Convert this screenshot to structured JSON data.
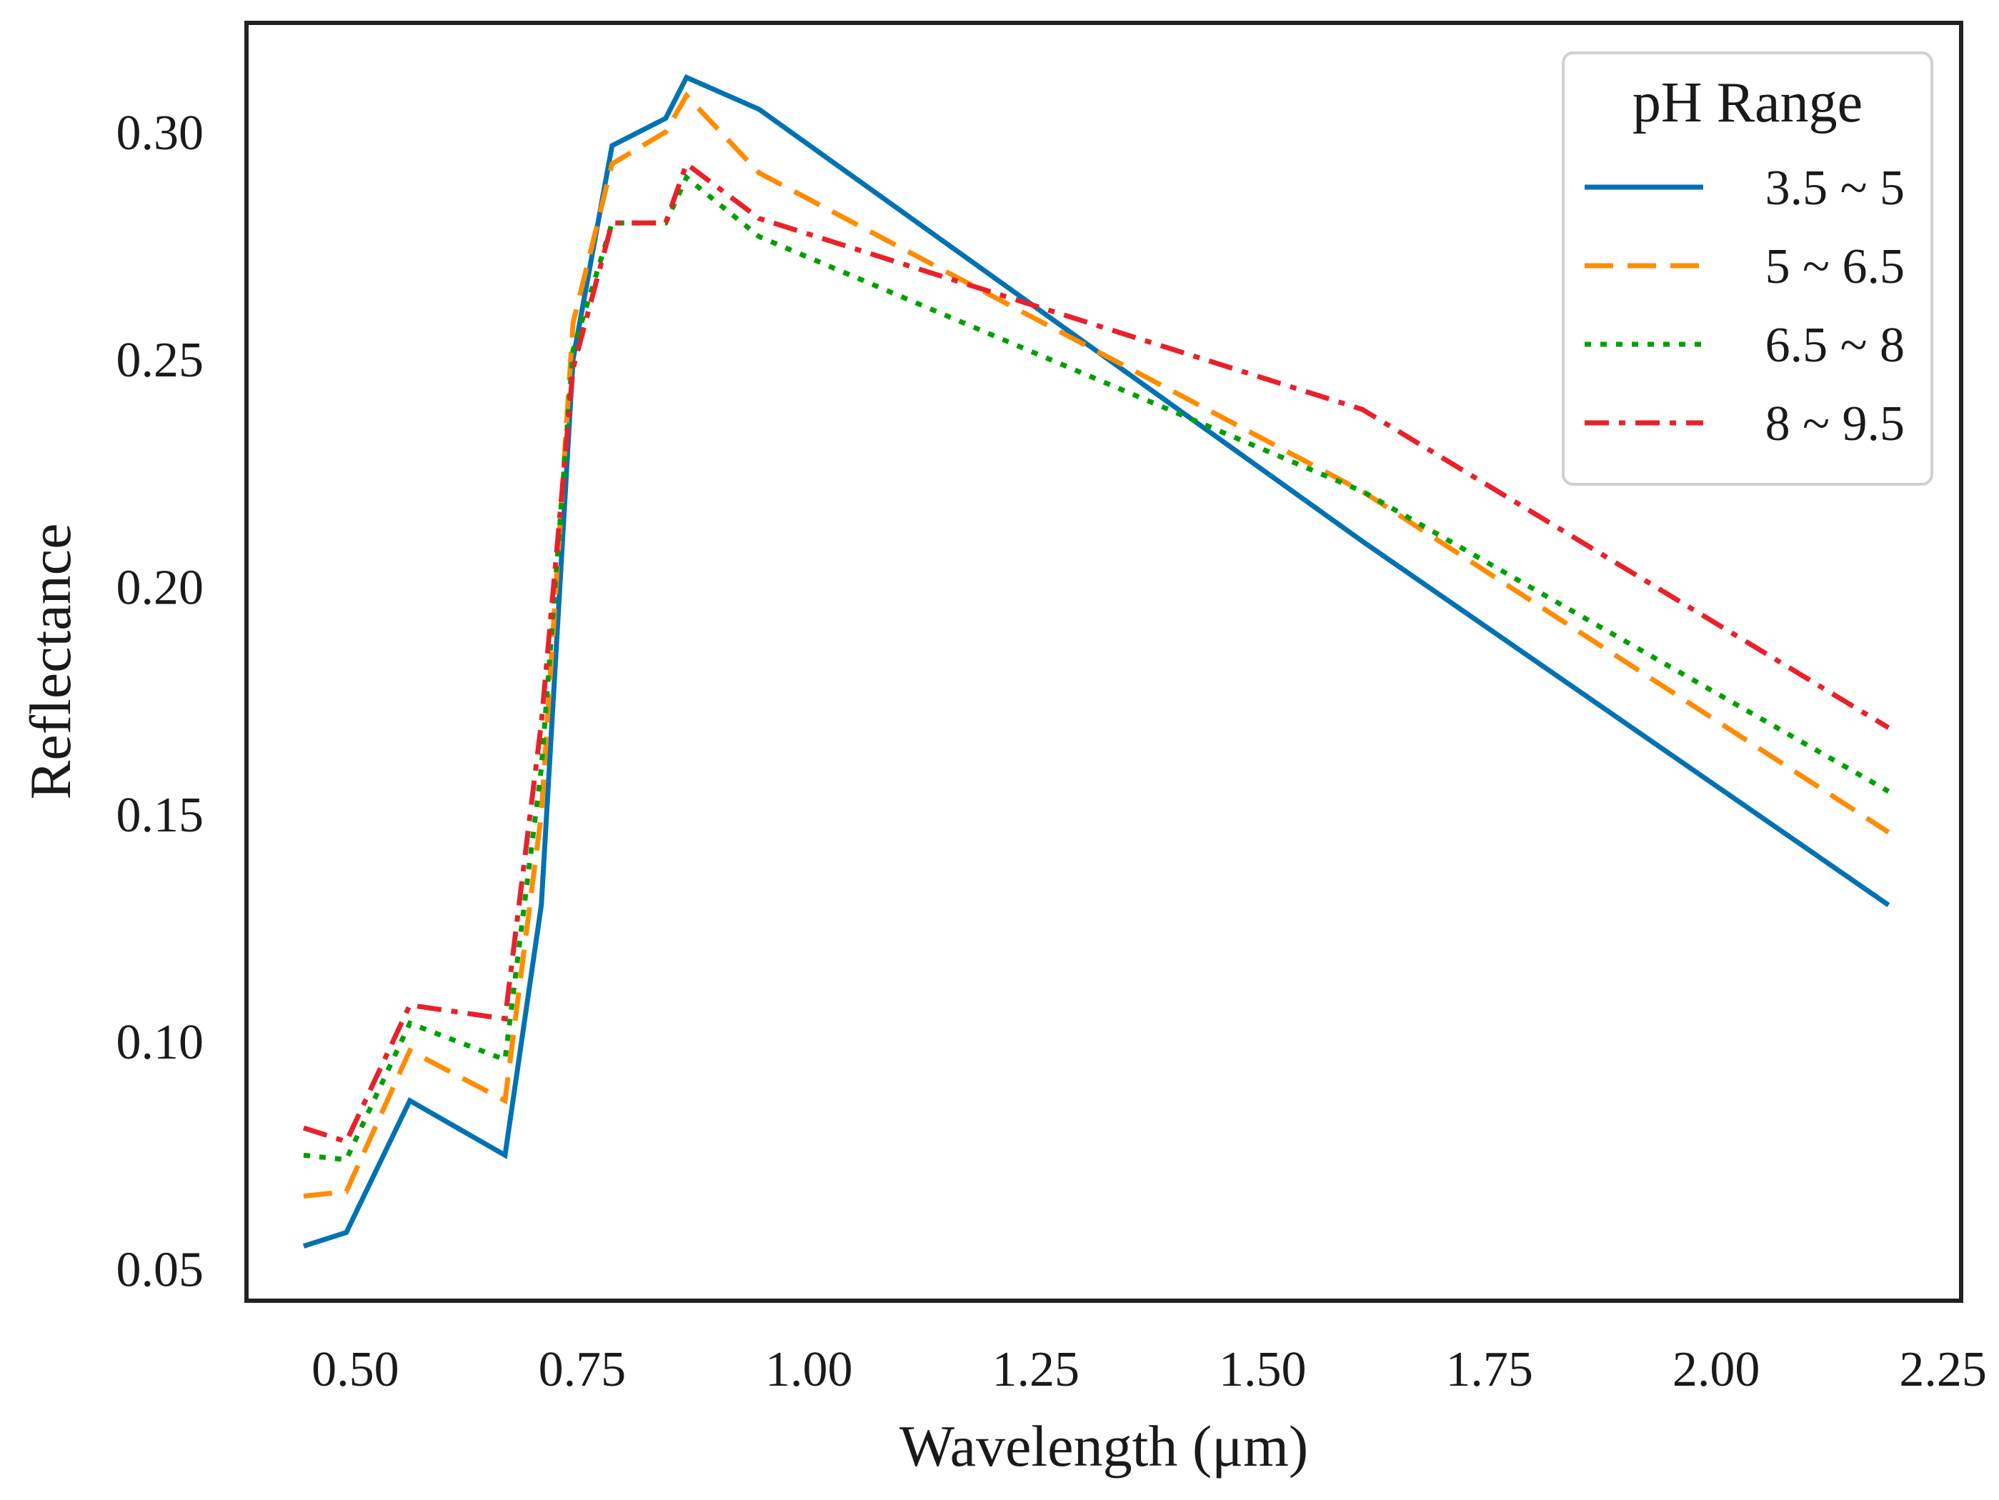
{
  "chart_data": {
    "type": "line",
    "title": "",
    "xlabel": "Wavelength (μm)",
    "ylabel": "Reflectance",
    "xlim": [
      0.38,
      2.27
    ],
    "ylim": [
      0.043,
      0.324
    ],
    "xticks": [
      0.5,
      0.75,
      1.0,
      1.25,
      1.5,
      1.75,
      2.0,
      2.25
    ],
    "xtick_labels": [
      "0.50",
      "0.75",
      "1.00",
      "1.25",
      "1.50",
      "1.75",
      "2.00",
      "2.25"
    ],
    "yticks": [
      0.05,
      0.1,
      0.15,
      0.2,
      0.25,
      0.3
    ],
    "ytick_labels": [
      "0.05",
      "0.10",
      "0.15",
      "0.20",
      "0.25",
      "0.30"
    ],
    "grid": false,
    "legend": {
      "title": "pH Range",
      "placement": "top-right"
    },
    "series": [
      {
        "name": "3.5 ~ 5",
        "color": "#0072B2",
        "dash": "solid",
        "x": [
          0.443,
          0.49,
          0.56,
          0.665,
          0.705,
          0.74,
          0.783,
          0.842,
          0.865,
          0.945,
          1.61,
          2.19
        ],
        "y": [
          0.055,
          0.058,
          0.087,
          0.075,
          0.13,
          0.25,
          0.297,
          0.303,
          0.312,
          0.305,
          0.21,
          0.13
        ]
      },
      {
        "name": "5 ~ 6.5",
        "color": "#FF8C00",
        "dash": "dashed",
        "x": [
          0.443,
          0.49,
          0.56,
          0.665,
          0.705,
          0.74,
          0.783,
          0.842,
          0.865,
          0.945,
          1.61,
          2.19
        ],
        "y": [
          0.066,
          0.067,
          0.098,
          0.087,
          0.15,
          0.258,
          0.293,
          0.3,
          0.308,
          0.291,
          0.221,
          0.146
        ]
      },
      {
        "name": "6.5 ~ 8",
        "color": "#00A000",
        "dash": "dotted",
        "x": [
          0.443,
          0.49,
          0.56,
          0.665,
          0.705,
          0.74,
          0.783,
          0.842,
          0.865,
          0.945,
          1.61,
          2.19
        ],
        "y": [
          0.075,
          0.074,
          0.104,
          0.096,
          0.16,
          0.252,
          0.28,
          0.28,
          0.29,
          0.277,
          0.221,
          0.155
        ]
      },
      {
        "name": "8 ~ 9.5",
        "color": "#E8212B",
        "dash": "dashdot",
        "x": [
          0.443,
          0.49,
          0.56,
          0.665,
          0.705,
          0.74,
          0.783,
          0.842,
          0.865,
          0.945,
          1.61,
          2.19
        ],
        "y": [
          0.081,
          0.078,
          0.108,
          0.105,
          0.17,
          0.248,
          0.28,
          0.28,
          0.293,
          0.281,
          0.239,
          0.169
        ]
      }
    ]
  }
}
